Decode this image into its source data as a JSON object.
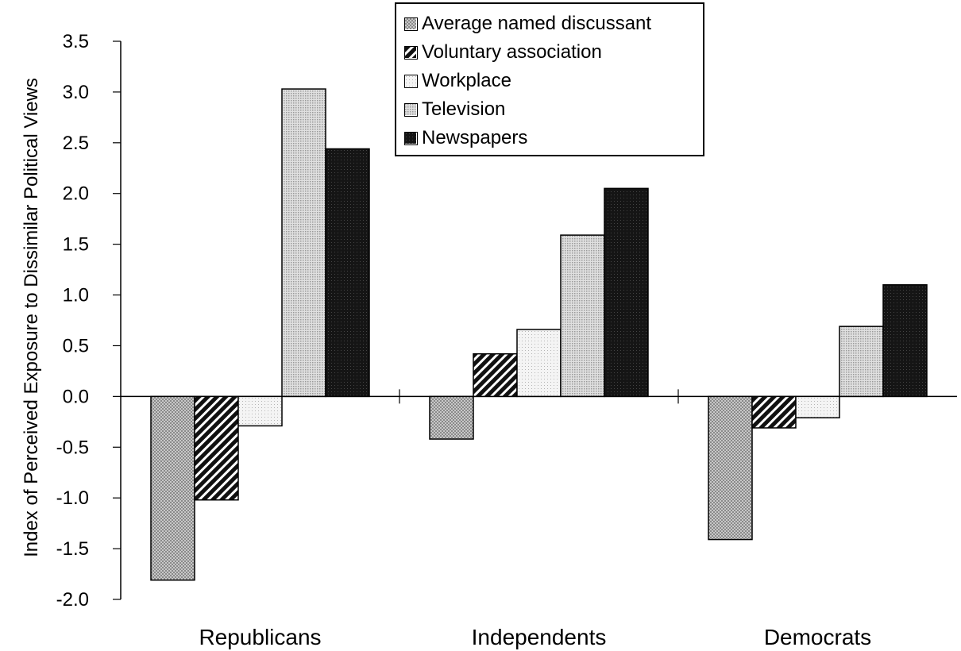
{
  "chart_data": {
    "type": "bar",
    "title": "",
    "xlabel": "",
    "ylabel": "Index of Perceived Exposure to Dissimilar Political Views",
    "ylim": [
      -2.0,
      3.5
    ],
    "yticks": [
      "-2.0",
      "-1.5",
      "-1.0",
      "-0.5",
      "0.0",
      "0.5",
      "1.0",
      "1.5",
      "2.0",
      "2.5",
      "3.0",
      "3.5"
    ],
    "categories": [
      "Republicans",
      "Independents",
      "Democrats"
    ],
    "legend_position": "top-center",
    "series": [
      {
        "name": "Average named discussant",
        "values": [
          -1.81,
          -0.42,
          -1.41
        ],
        "fill": "crosshatch-gray"
      },
      {
        "name": "Voluntary association",
        "values": [
          -1.02,
          0.42,
          -0.31
        ],
        "fill": "diagonal-black"
      },
      {
        "name": "Workplace",
        "values": [
          -0.29,
          0.66,
          -0.21
        ],
        "fill": "light-dots"
      },
      {
        "name": "Television",
        "values": [
          3.03,
          1.59,
          0.69
        ],
        "fill": "medium-dots"
      },
      {
        "name": "Newspapers",
        "values": [
          2.44,
          2.05,
          1.1
        ],
        "fill": "dark"
      }
    ]
  }
}
